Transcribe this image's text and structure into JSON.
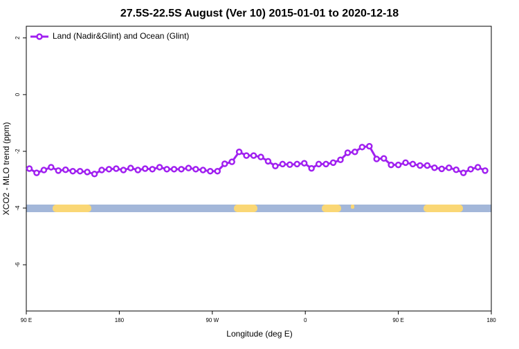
{
  "chart_data": {
    "type": "line",
    "title": "27.5S-22.5S August (Ver 10)   2015-01-01 to 2020-12-18",
    "x_label": "Longitude (deg E)",
    "y_label": "XCO2 - MLO trend (ppm)",
    "xlim": [
      90,
      540
    ],
    "ylim": [
      -7.63,
      2.41
    ],
    "xticks": [
      {
        "value": 90,
        "label": "90 E"
      },
      {
        "value": 180,
        "label": "180"
      },
      {
        "value": 270,
        "label": "90 W"
      },
      {
        "value": 360,
        "label": "0"
      },
      {
        "value": 450,
        "label": "90 E"
      },
      {
        "value": 540,
        "label": "180"
      }
    ],
    "yticks": [
      2,
      0,
      -2,
      -4,
      -6
    ],
    "legend": "top-left",
    "x": [
      93,
      100,
      107,
      114,
      121,
      128,
      135,
      142,
      149,
      156,
      163,
      170,
      177,
      184,
      191,
      198,
      205,
      212,
      219,
      226,
      233,
      240,
      247,
      254,
      261,
      268,
      275,
      282,
      289,
      296,
      303,
      310,
      317,
      324,
      331,
      338,
      345,
      352,
      359,
      366,
      373,
      380,
      387,
      394,
      401,
      408,
      415,
      422,
      429,
      436,
      443,
      450,
      457,
      464,
      471,
      478,
      485,
      492,
      499,
      506,
      513,
      520,
      527,
      534
    ],
    "series": [
      {
        "name": "Land (Nadir&Glint) and Ocean (Glint)",
        "color": "#a020f0",
        "values": [
          -2.61,
          -2.76,
          -2.66,
          -2.56,
          -2.68,
          -2.65,
          -2.7,
          -2.7,
          -2.73,
          -2.8,
          -2.66,
          -2.63,
          -2.61,
          -2.66,
          -2.59,
          -2.66,
          -2.61,
          -2.63,
          -2.56,
          -2.63,
          -2.63,
          -2.63,
          -2.59,
          -2.63,
          -2.66,
          -2.7,
          -2.7,
          -2.44,
          -2.37,
          -2.02,
          -2.15,
          -2.15,
          -2.2,
          -2.35,
          -2.52,
          -2.45,
          -2.47,
          -2.45,
          -2.42,
          -2.6,
          -2.45,
          -2.45,
          -2.4,
          -2.3,
          -2.05,
          -2.02,
          -1.85,
          -1.82,
          -2.27,
          -2.25,
          -2.48,
          -2.48,
          -2.4,
          -2.45,
          -2.5,
          -2.5,
          -2.58,
          -2.62,
          -2.58,
          -2.65,
          -2.76,
          -2.63,
          -2.56,
          -2.68
        ]
      }
    ]
  }
}
